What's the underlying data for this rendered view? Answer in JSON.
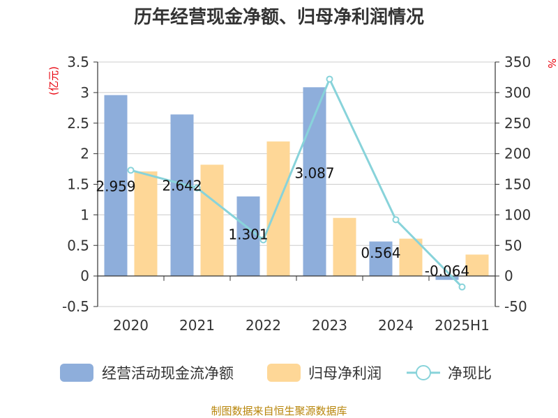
{
  "chart_data": {
    "type": "bar",
    "title": "历年经营现金净额、归母净利润情况",
    "categories": [
      "2020",
      "2021",
      "2022",
      "2023",
      "2024",
      "2025H1"
    ],
    "y_left": {
      "unit": "(亿元)",
      "range": [
        -0.5,
        3.5
      ],
      "ticks": [
        "-0.5",
        "0",
        "0.5",
        "1",
        "1.5",
        "2",
        "2.5",
        "3",
        "3.5"
      ]
    },
    "y_right": {
      "unit": "%",
      "range": [
        -50,
        350
      ],
      "ticks": [
        "-50",
        "0",
        "50",
        "100",
        "150",
        "200",
        "250",
        "300",
        "350"
      ]
    },
    "series": [
      {
        "name": "经营活动现金流净额",
        "type": "bar",
        "axis": "left",
        "values": [
          2.959,
          2.642,
          1.301,
          3.087,
          0.564,
          -0.064
        ],
        "labels": [
          "2.959",
          "2.642",
          "1.301",
          "3.087",
          "0.564",
          "-0.064"
        ],
        "color": "#8eaedb"
      },
      {
        "name": "归母净利润",
        "type": "bar",
        "axis": "left",
        "values": [
          1.71,
          1.82,
          2.2,
          0.95,
          0.61,
          0.35
        ],
        "color": "#fed797"
      },
      {
        "name": "净现比",
        "type": "line",
        "axis": "right",
        "values": [
          173,
          144,
          59,
          322,
          92,
          -18
        ],
        "color": "#88d3da"
      }
    ],
    "grid": true,
    "legend": "bottom"
  },
  "footer": {
    "source": "制图数据来自恒生聚源数据库"
  }
}
